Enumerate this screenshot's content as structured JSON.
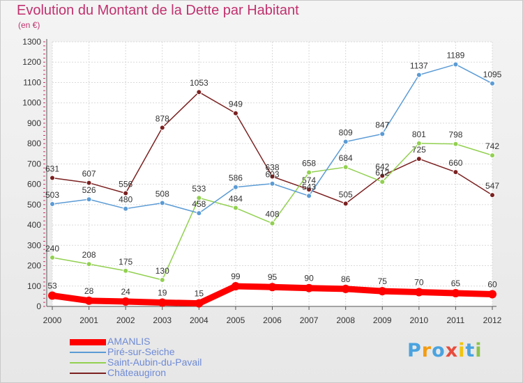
{
  "chart_data": {
    "type": "line",
    "title": "Evolution du Montant de la Dette par Habitant",
    "subtitle": "(en €)",
    "xlabel": "",
    "ylabel": "",
    "x": [
      2000,
      2001,
      2002,
      2003,
      2004,
      2005,
      2006,
      2007,
      2008,
      2009,
      2010,
      2011,
      2012
    ],
    "ylim": [
      0,
      1300
    ],
    "yticks": [
      0,
      100,
      200,
      300,
      400,
      500,
      600,
      700,
      800,
      900,
      1000,
      1100,
      1200,
      1300
    ],
    "grid": true,
    "legend_position": "bottom-left",
    "series": [
      {
        "name": "AMANLIS",
        "color": "#ff0000",
        "values": [
          53,
          28,
          24,
          19,
          15,
          99,
          95,
          90,
          86,
          75,
          70,
          65,
          60
        ]
      },
      {
        "name": "Piré-sur-Seiche",
        "color": "#5b9bd5",
        "values": [
          503,
          526,
          480,
          508,
          458,
          586,
          603,
          543,
          809,
          847,
          1137,
          1189,
          1095
        ]
      },
      {
        "name": "Saint-Aubin-du-Pavail",
        "color": "#92d050",
        "values": [
          240,
          208,
          175,
          130,
          533,
          484,
          408,
          658,
          684,
          612,
          801,
          798,
          742
        ]
      },
      {
        "name": "Châteaugiron",
        "color": "#7b2020",
        "values": [
          631,
          607,
          556,
          878,
          1053,
          949,
          638,
          574,
          505,
          642,
          725,
          660,
          547
        ]
      }
    ]
  },
  "logo": {
    "letters": [
      "P",
      "r",
      "o",
      "x",
      "i",
      "t",
      "i"
    ],
    "colors": [
      "#4aa3df",
      "#f39c12",
      "#4aa3df",
      "#e74c3c",
      "#f1c40f",
      "#4aa3df",
      "#8bc34a"
    ]
  }
}
